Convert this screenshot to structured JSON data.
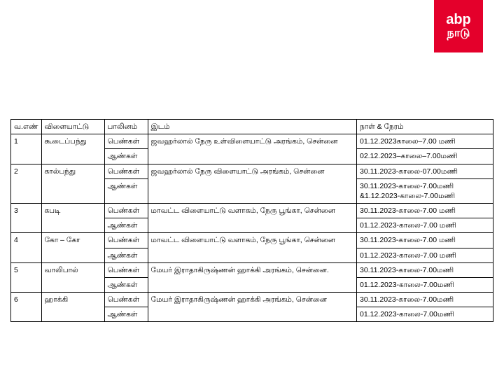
{
  "logo": {
    "top": "abp",
    "bottom": "நாடு"
  },
  "table": {
    "headers": {
      "no": "வ.எண்",
      "sport": "விளையாட்டு",
      "gender": "பாலினம்",
      "venue": "இடம்",
      "time": "நாள் & நேரம்"
    },
    "rows": [
      {
        "no": "1",
        "sport": "கூடைப்பந்து",
        "genders": [
          "பெண்கள்",
          "ஆண்கள்"
        ],
        "venue": "ஜவஹர்லால் நேரு உள்விளையாட்டு அரங்கம், சென்னை",
        "times": [
          "01.12.2023காலை–7.00 மணி",
          "02.12.2023–காலை–7.00மணி"
        ]
      },
      {
        "no": "2",
        "sport": "கால்பந்து",
        "genders": [
          "பெண்கள்",
          "ஆண்கள்"
        ],
        "venue": "ஜவஹர்லால் நேரு விளையாட்டு அரங்கம், சென்னை",
        "times": [
          "30.11.2023-காலை-07.00மணி",
          "30.11.2023-காலை-7.00மணி &1.12.2023-காலை-7.00மணி"
        ]
      },
      {
        "no": "3",
        "sport": "கபடி",
        "genders": [
          "பெண்கள்",
          "ஆண்கள்"
        ],
        "venue": "மாவட்ட விளையாட்டு வளாகம், நேரு பூங்கா, சென்னை",
        "times": [
          "30.11.2023-காலை-7.00 மணி",
          "01.12.2023-காலை-7.00 மணி"
        ]
      },
      {
        "no": "4",
        "sport": "கோ – கோ",
        "genders": [
          "பெண்கள்",
          "ஆண்கள்"
        ],
        "venue": "மாவட்ட விளையாட்டு வளாகம், நேரு பூங்கா, சென்னை",
        "times": [
          "30.11.2023-காலை-7.00 மணி",
          "01.12.2023-காலை-7.00 மணி"
        ]
      },
      {
        "no": "5",
        "sport": "வாலிபால்",
        "genders": [
          "பெண்கள்",
          "ஆண்கள்"
        ],
        "venue": "மேயர் இராதாகிருஷ்ணன் ஹாக்கி அரங்கம், சென்னை.",
        "times": [
          "30.11.2023-காலை-7.00மணி",
          "01.12.2023-காலை-7.00மணி"
        ]
      },
      {
        "no": "6",
        "sport": "ஹாக்கி",
        "genders": [
          "பெண்கள்",
          "ஆண்கள்"
        ],
        "venue": "மேயர் இராதாகிருஷ்ணன் ஹாக்கி அரங்கம், சென்னை",
        "times": [
          "30.11.2023-காலை-7.00மணி",
          "01.12.2023-காலை-7.00மணி"
        ]
      }
    ]
  }
}
